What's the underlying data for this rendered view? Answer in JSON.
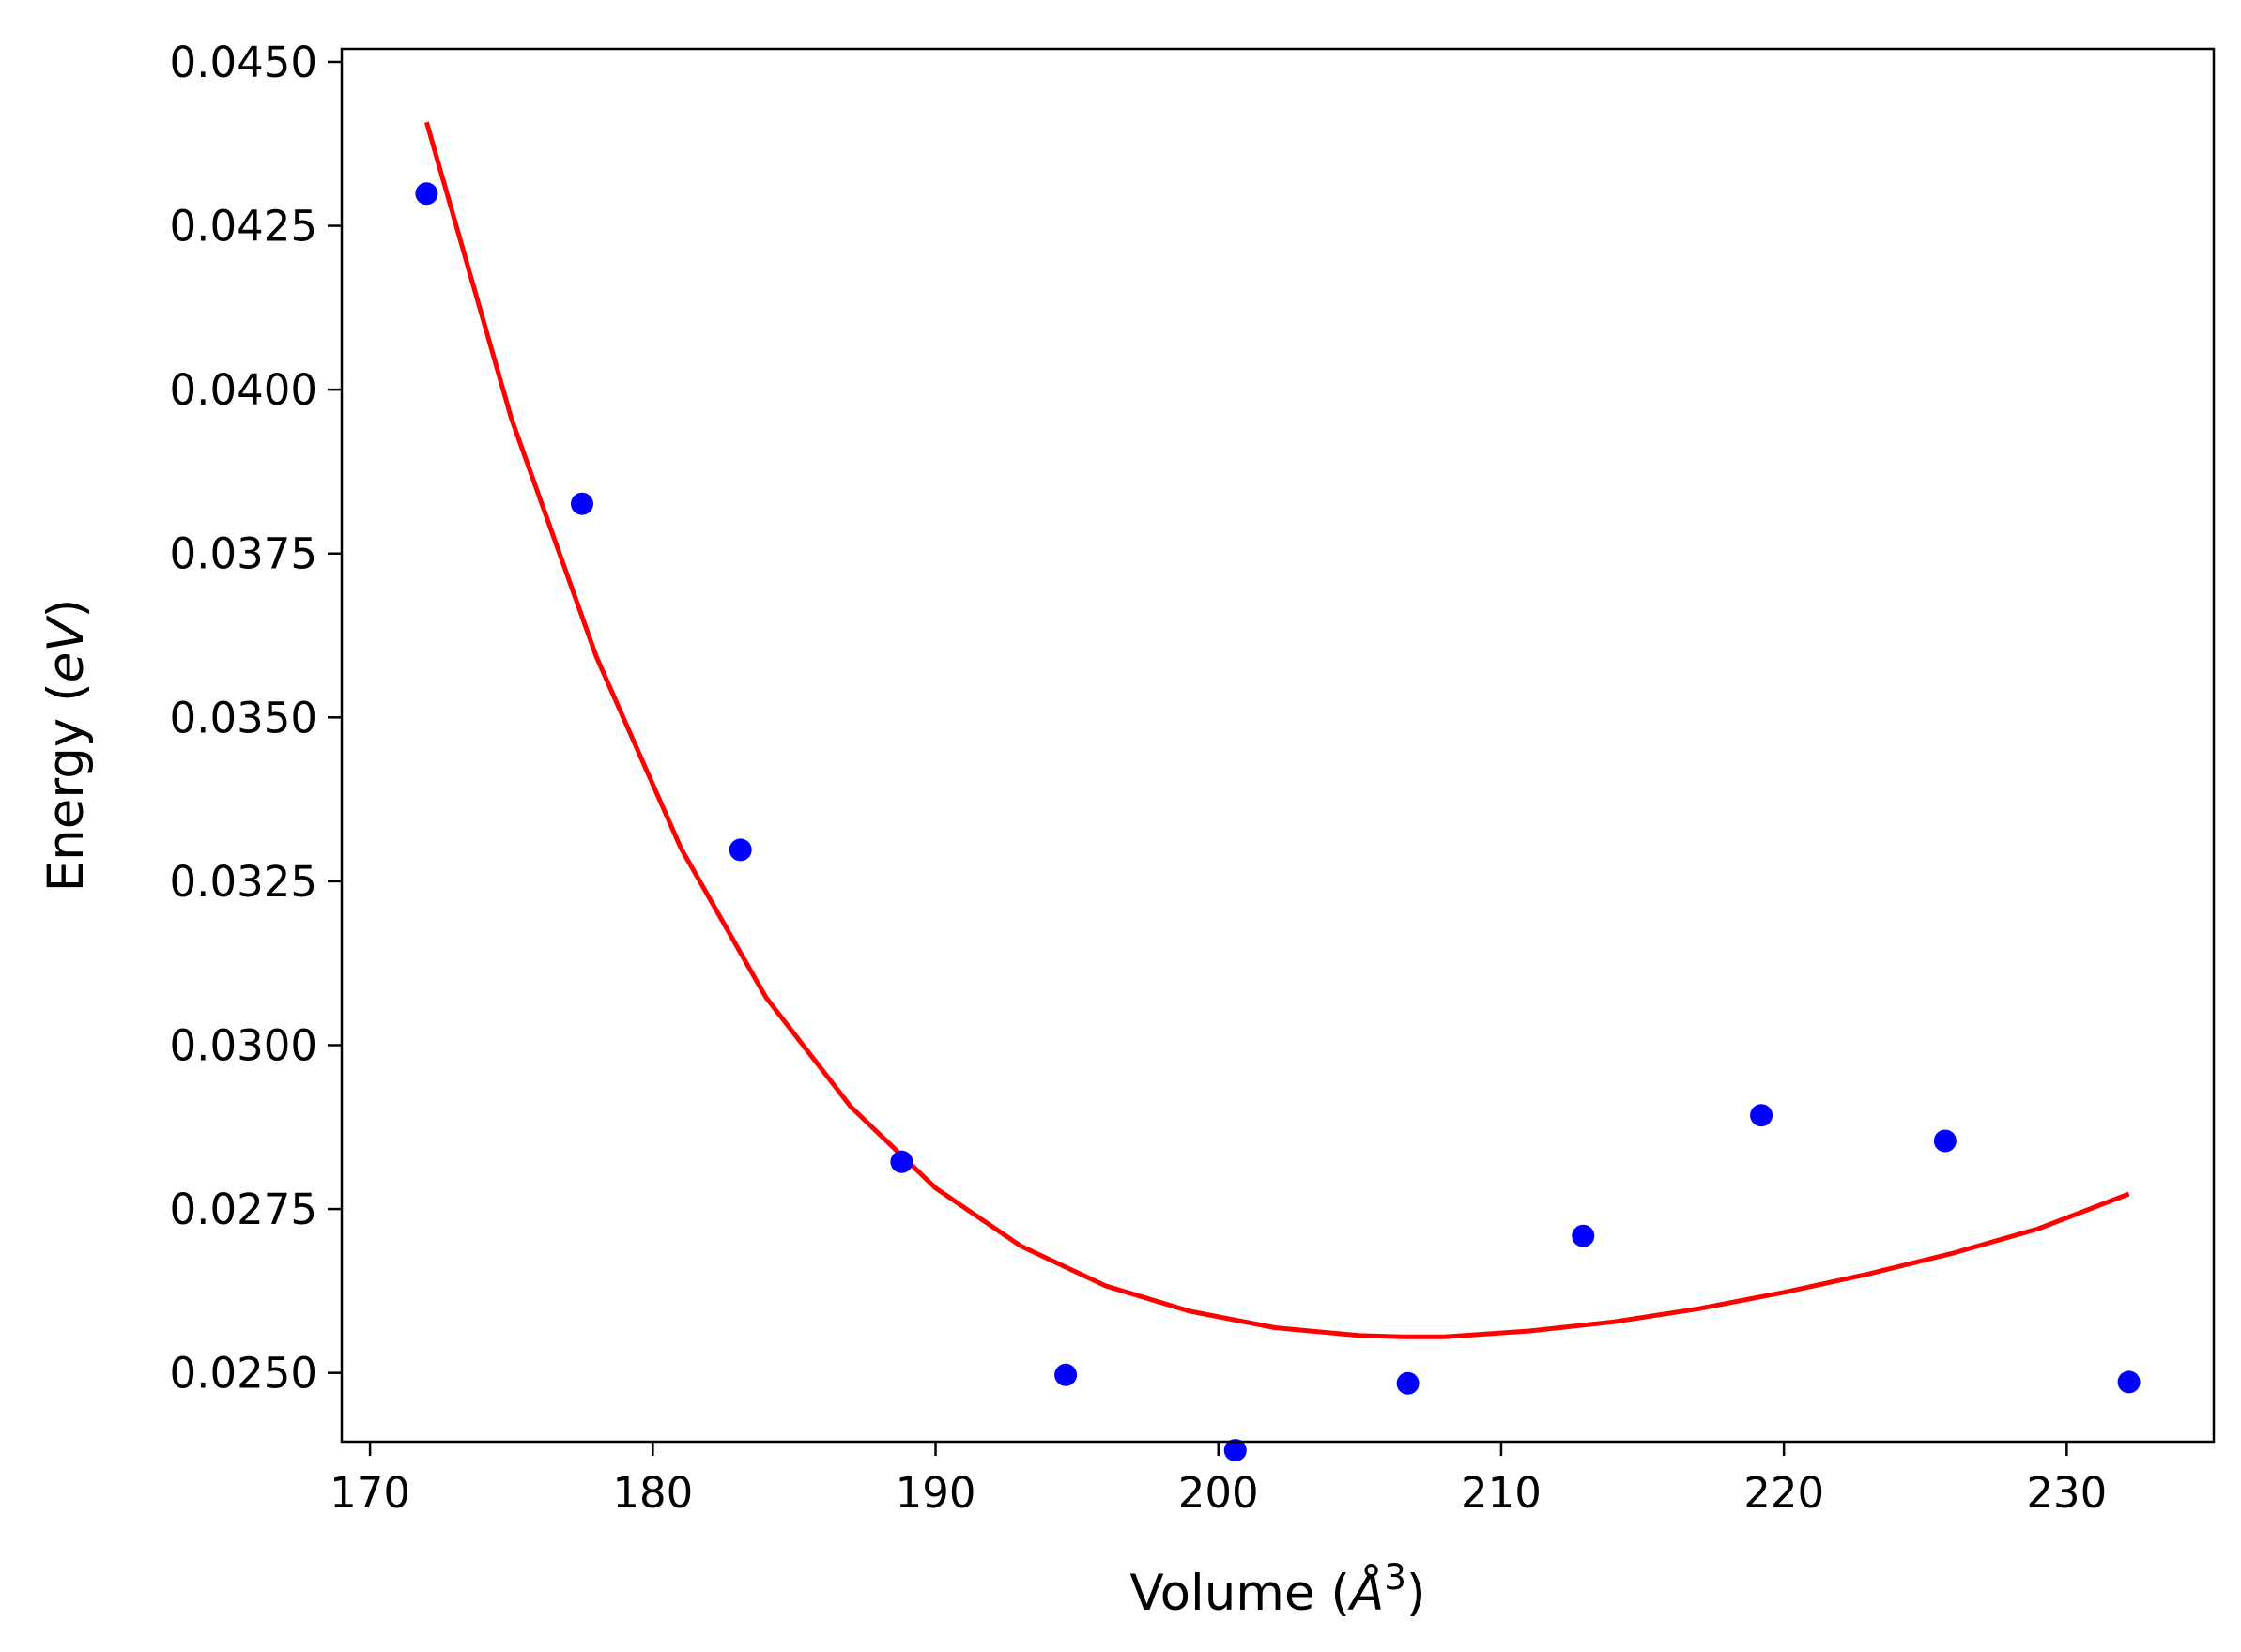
{
  "chart_data": {
    "type": "scatter",
    "title": "",
    "xlabel": "Volume (Å³)",
    "xlabel_parts": {
      "prefix": "Volume (",
      "unit": "Å",
      "sup": "3",
      "suffix": ")"
    },
    "ylabel": "Energy (eV)",
    "ylabel_parts": {
      "prefix": "Energy (",
      "unit": "eV",
      "suffix": ")"
    },
    "xlim": [
      169,
      235.2
    ],
    "ylim": [
      0.02395,
      0.0452
    ],
    "xticks": [
      170,
      180,
      190,
      200,
      210,
      220,
      230
    ],
    "xtick_labels": [
      "170",
      "180",
      "190",
      "200",
      "210",
      "220",
      "230"
    ],
    "yticks": [
      0.025,
      0.0275,
      0.03,
      0.0325,
      0.035,
      0.0375,
      0.04,
      0.0425,
      0.045
    ],
    "ytick_labels": [
      "0.0250",
      "0.0275",
      "0.0300",
      "0.0325",
      "0.0350",
      "0.0375",
      "0.0400",
      "0.0425",
      "0.0450"
    ],
    "grid": false,
    "legend": "none",
    "series": [
      {
        "kind": "scatter",
        "color": "#0000ff",
        "x": [
          172.0,
          177.5,
          183.1,
          188.8,
          194.6,
          200.6,
          206.7,
          212.9,
          219.2,
          225.7,
          232.2
        ],
        "y": [
          0.04299,
          0.03826,
          0.03298,
          0.02822,
          0.02497,
          0.02382,
          0.02484,
          0.02709,
          0.02893,
          0.02854,
          0.02486
        ]
      },
      {
        "kind": "line",
        "color": "#ff0000",
        "x": [
          172.0,
          175.0,
          178.0,
          181.0,
          184.0,
          187.0,
          190.0,
          193.0,
          196.0,
          199.0,
          202.0,
          205.0,
          206.5,
          208.0,
          211.0,
          214.0,
          217.0,
          220.0,
          223.0,
          226.0,
          229.0,
          232.2
        ],
        "y": [
          0.04408,
          0.03956,
          0.03593,
          0.033,
          0.03073,
          0.02906,
          0.02782,
          0.02694,
          0.02633,
          0.02594,
          0.02569,
          0.02557,
          0.02555,
          0.02555,
          0.02564,
          0.02578,
          0.02598,
          0.02623,
          0.02651,
          0.02683,
          0.0272,
          0.02773
        ]
      }
    ]
  }
}
